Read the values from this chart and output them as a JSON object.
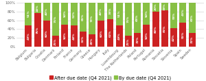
{
  "categories": [
    "Belgium",
    "Bulgaria",
    "Croatia",
    "Denmark",
    "Finland",
    "France",
    "Germany",
    "Greece",
    "Hungary",
    "Italy",
    "Luxembourg",
    "The Netherlands",
    "Poland",
    "Portugal",
    "Romania",
    "Slovakia",
    "Slovenia",
    "Spain",
    "Sweden"
  ],
  "after_due": [
    49,
    76,
    60,
    25,
    50,
    48,
    35,
    28,
    60,
    62,
    49,
    25,
    32,
    50,
    80,
    82,
    42,
    55,
    32
  ],
  "by_due": [
    51,
    24,
    40,
    75,
    50,
    52,
    65,
    72,
    40,
    38,
    51,
    75,
    68,
    50,
    20,
    18,
    58,
    45,
    68
  ],
  "color_after": "#cc2222",
  "color_by": "#88c044",
  "label_after": "After due date (Q4 2021)",
  "label_by": "By due date (Q4 2021)",
  "label_color": "#ffffff",
  "background_color": "#ffffff",
  "grid_color": "#cccccc",
  "bar_label_fontsize": 3.2,
  "tick_fontsize": 3.8,
  "legend_fontsize": 4.8,
  "bar_width": 0.75
}
